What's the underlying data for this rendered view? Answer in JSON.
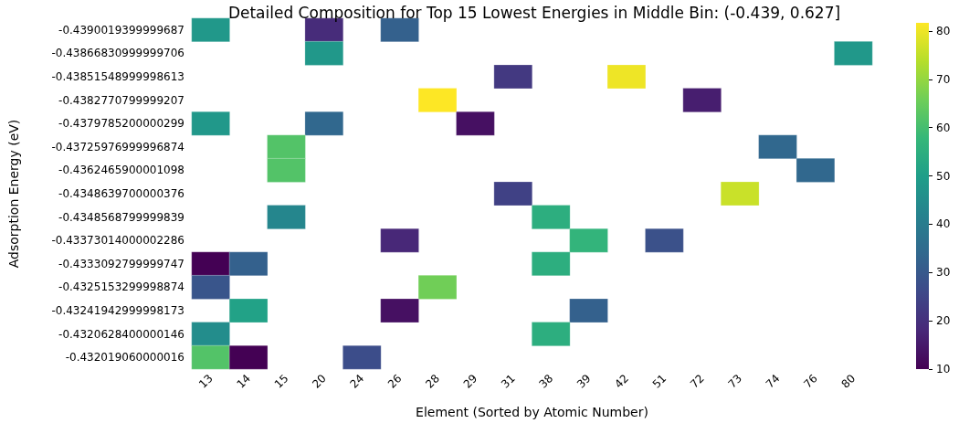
{
  "chart_data": {
    "type": "heatmap",
    "title": "Detailed Composition for Top 15 Lowest Energies in Middle Bin: (-0.439, 0.627]",
    "xlabel": "Element (Sorted by Atomic Number)",
    "ylabel": "Adsorption Energy (eV)",
    "categories": [
      "13",
      "14",
      "15",
      "20",
      "24",
      "26",
      "28",
      "29",
      "31",
      "38",
      "39",
      "42",
      "51",
      "72",
      "73",
      "74",
      "76",
      "80"
    ],
    "y_categories": [
      "-0.4390019399999687",
      "-0.43866830999999706",
      "-0.43851548999998613",
      "-0.4382770799999207",
      "-0.4379785200000299",
      "-0.43725976999996874",
      "-0.4362465900001098",
      "-0.4348639700000376",
      "-0.4348568799999839",
      "-0.43373014000002286",
      "-0.4333092799999747",
      "-0.4325153299998874",
      "-0.43241942999998173",
      "-0.4320628400000146",
      "-0.432019060000016"
    ],
    "cells": [
      [
        48,
        null,
        null,
        19,
        null,
        32,
        null,
        null,
        null,
        null,
        null,
        null,
        null,
        null,
        null,
        null,
        null,
        null
      ],
      [
        null,
        null,
        null,
        48,
        null,
        null,
        null,
        null,
        null,
        null,
        null,
        null,
        null,
        null,
        null,
        null,
        null,
        48
      ],
      [
        null,
        null,
        null,
        null,
        null,
        null,
        null,
        null,
        22,
        null,
        null,
        80,
        null,
        null,
        null,
        null,
        null,
        null
      ],
      [
        null,
        null,
        null,
        null,
        null,
        null,
        81.7,
        null,
        null,
        null,
        null,
        null,
        null,
        16,
        null,
        null,
        null,
        null
      ],
      [
        48,
        null,
        null,
        34,
        null,
        null,
        null,
        13,
        null,
        null,
        null,
        null,
        null,
        null,
        null,
        null,
        null,
        null
      ],
      [
        null,
        null,
        62,
        null,
        null,
        null,
        null,
        null,
        null,
        null,
        null,
        null,
        null,
        null,
        null,
        34,
        null,
        null
      ],
      [
        null,
        null,
        62,
        null,
        null,
        null,
        null,
        null,
        null,
        null,
        null,
        null,
        null,
        null,
        null,
        null,
        34,
        null
      ],
      [
        null,
        null,
        null,
        null,
        null,
        null,
        null,
        null,
        24,
        null,
        null,
        null,
        null,
        null,
        76,
        null,
        null,
        null
      ],
      [
        null,
        null,
        43,
        null,
        null,
        null,
        null,
        null,
        null,
        55,
        null,
        null,
        null,
        null,
        null,
        null,
        null,
        null
      ],
      [
        null,
        null,
        null,
        null,
        null,
        18,
        null,
        null,
        null,
        null,
        57,
        null,
        28,
        null,
        null,
        null,
        null,
        null
      ],
      [
        10,
        32,
        null,
        null,
        null,
        null,
        null,
        null,
        null,
        55,
        null,
        null,
        null,
        null,
        null,
        null,
        null,
        null
      ],
      [
        29,
        null,
        null,
        null,
        null,
        null,
        66,
        null,
        null,
        null,
        null,
        null,
        null,
        null,
        null,
        null,
        null,
        null
      ],
      [
        null,
        51,
        null,
        null,
        null,
        13,
        null,
        null,
        null,
        null,
        32,
        null,
        null,
        null,
        null,
        null,
        null,
        null
      ],
      [
        45,
        null,
        null,
        null,
        null,
        null,
        null,
        null,
        null,
        55,
        null,
        null,
        null,
        null,
        null,
        null,
        null,
        null
      ],
      [
        62,
        10,
        null,
        null,
        27,
        null,
        null,
        null,
        null,
        null,
        null,
        null,
        null,
        null,
        null,
        null,
        null,
        null
      ]
    ],
    "clim": [
      10,
      81.7
    ],
    "cticks": [
      10,
      20,
      30,
      40,
      50,
      60,
      70,
      80
    ]
  }
}
